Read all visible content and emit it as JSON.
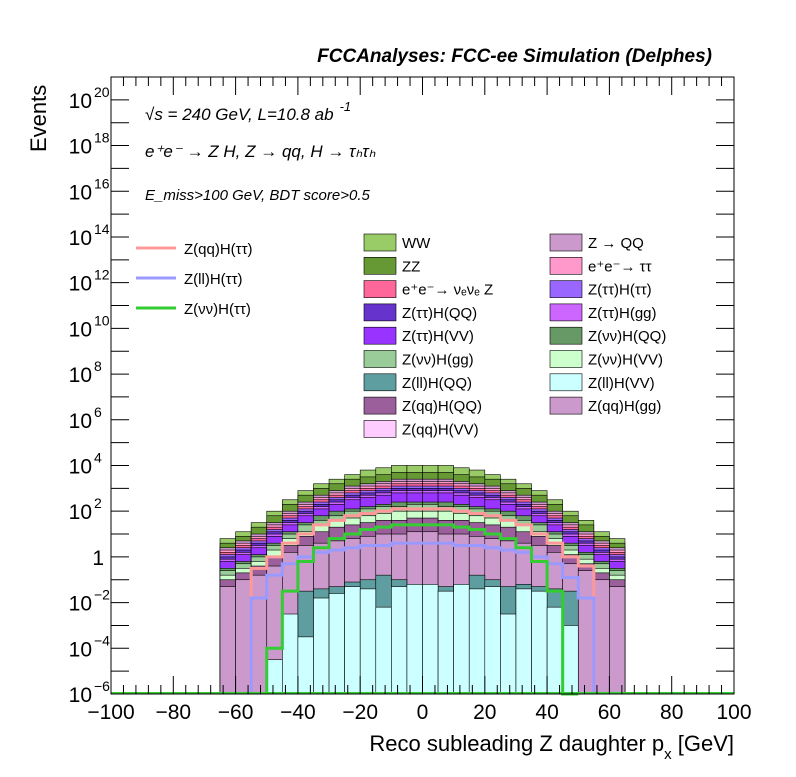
{
  "chart_data": {
    "type": "histogram",
    "title": "FCCAnalyses: FCC-ee Simulation (Delphes)",
    "xlabel": "Reco subleading Z daughter p",
    "xlabel_sub": "x",
    "xlabel_unit": " [GeV]",
    "ylabel": "Events",
    "xlim": [
      -100,
      100
    ],
    "ylim": [
      1e-06,
      1e+21
    ],
    "log_y": true,
    "x_ticks": [
      -100,
      -80,
      -60,
      -40,
      -20,
      0,
      20,
      40,
      60,
      80,
      100
    ],
    "x_tick_labels": [
      "−100",
      "−80",
      "−60",
      "−40",
      "−20",
      "0",
      "20",
      "40",
      "60",
      "80",
      "100"
    ],
    "y_ticks": [
      {
        "exp": -6,
        "base": "10",
        "sup": "−6"
      },
      {
        "exp": -4,
        "base": "10",
        "sup": "−4"
      },
      {
        "exp": -2,
        "base": "10",
        "sup": "−2"
      },
      {
        "exp": 0,
        "base": "1",
        "sup": ""
      },
      {
        "exp": 2,
        "base": "10",
        "sup": "2"
      },
      {
        "exp": 4,
        "base": "10",
        "sup": "4"
      },
      {
        "exp": 6,
        "base": "10",
        "sup": "6"
      },
      {
        "exp": 8,
        "base": "10",
        "sup": "8"
      },
      {
        "exp": 10,
        "base": "10",
        "sup": "10"
      },
      {
        "exp": 12,
        "base": "10",
        "sup": "12"
      },
      {
        "exp": 14,
        "base": "10",
        "sup": "14"
      },
      {
        "exp": 16,
        "base": "10",
        "sup": "16"
      },
      {
        "exp": 18,
        "base": "10",
        "sup": "18"
      },
      {
        "exp": 20,
        "base": "10",
        "sup": "20"
      }
    ],
    "annotations": {
      "energy": "√s = 240 GeV, L=10.8 ab",
      "energy_sup": "-1",
      "process": "e⁺e⁻ → Z H, Z → qq, H → τₕτₕ",
      "selection": "E_miss>100 GeV, BDT score>0.5"
    },
    "x_bins": [
      -65,
      -60,
      -55,
      -50,
      -45,
      -40,
      -35,
      -30,
      -25,
      -20,
      -15,
      -10,
      -5,
      0,
      5,
      10,
      15,
      20,
      25,
      30,
      35,
      40,
      45,
      50,
      55,
      60,
      65
    ],
    "stacked_backgrounds": [
      {
        "name": "Z(qq)H(VV)",
        "color": "#ffccff",
        "log_values": [
          null,
          null,
          null,
          null,
          null,
          null,
          null,
          null,
          null,
          null,
          null,
          null,
          null,
          null,
          null,
          null,
          null,
          null,
          null,
          null,
          null,
          null,
          null,
          null,
          null,
          null
        ]
      },
      {
        "name": "Z(ll)H(VV)",
        "color": "#ccffff",
        "log_values": [
          null,
          null,
          null,
          -4.5,
          -2.5,
          -3.5,
          -1.8,
          -1.6,
          -1.3,
          -1.4,
          -2.2,
          -1.3,
          -1.2,
          -1.2,
          -1.5,
          -1.2,
          -1.4,
          -1.3,
          -2.5,
          -1.4,
          -1.5,
          -2.2,
          -3.0,
          null,
          null,
          null
        ]
      },
      {
        "name": "Z(ll)H(QQ)",
        "color": "#5f9ea0",
        "log_values": [
          null,
          null,
          null,
          null,
          null,
          -1.5,
          -1.4,
          -1.3,
          -1.1,
          -1.0,
          -0.8,
          -1.0,
          -1.2,
          -1.5,
          -1.3,
          -1.2,
          -0.8,
          -1.0,
          -1.3,
          -1.2,
          -1.3,
          -1.4,
          -1.5,
          null,
          null,
          null
        ]
      },
      {
        "name": "Z(qq)H(gg)",
        "color": "#cc99cc",
        "log_values": [
          -1.3,
          -1.0,
          -0.8,
          -0.4,
          0.2,
          0.5,
          0.6,
          0.7,
          0.8,
          0.9,
          1.0,
          1.0,
          1.1,
          1.1,
          1.0,
          1.0,
          0.9,
          0.8,
          0.7,
          0.6,
          0.5,
          0.2,
          -0.3,
          -0.6,
          -1.0,
          -1.3
        ]
      },
      {
        "name": "Z(qq)H(QQ)",
        "color": "#9b5f9b",
        "log_values": [
          -1.0,
          -0.7,
          -0.4,
          0.0,
          0.5,
          0.9,
          1.1,
          1.3,
          1.4,
          1.5,
          1.6,
          1.6,
          1.7,
          1.7,
          1.6,
          1.6,
          1.5,
          1.4,
          1.3,
          1.1,
          0.9,
          0.5,
          0.1,
          -0.3,
          -0.7,
          -1.0
        ]
      },
      {
        "name": "Z(νν)H(VV)",
        "color": "#ccffcc",
        "log_values": [
          -0.8,
          -0.5,
          -0.2,
          0.3,
          0.8,
          1.1,
          1.4,
          1.6,
          1.7,
          1.8,
          1.9,
          2.0,
          2.0,
          2.0,
          2.0,
          1.9,
          1.8,
          1.7,
          1.6,
          1.4,
          1.1,
          0.8,
          0.3,
          -0.1,
          -0.5,
          -0.8
        ]
      },
      {
        "name": "Z(νν)H(gg)",
        "color": "#99cc99",
        "log_values": [
          -0.6,
          -0.3,
          0.0,
          0.5,
          1.0,
          1.4,
          1.6,
          1.8,
          2.0,
          2.1,
          2.2,
          2.2,
          2.3,
          2.3,
          2.2,
          2.2,
          2.1,
          2.0,
          1.8,
          1.6,
          1.4,
          1.0,
          0.5,
          0.1,
          -0.3,
          -0.6
        ]
      },
      {
        "name": "Z(νν)H(QQ)",
        "color": "#669966",
        "log_values": [
          -0.5,
          -0.2,
          0.1,
          0.6,
          1.1,
          1.5,
          1.8,
          2.0,
          2.1,
          2.2,
          2.3,
          2.4,
          2.4,
          2.4,
          2.4,
          2.3,
          2.2,
          2.1,
          2.0,
          1.8,
          1.5,
          1.1,
          0.6,
          0.2,
          -0.2,
          -0.5
        ]
      },
      {
        "name": "Z(ττ)H(VV)",
        "color": "#9933ff",
        "log_values": [
          -0.2,
          0.1,
          0.4,
          0.9,
          1.4,
          1.8,
          2.1,
          2.3,
          2.5,
          2.6,
          2.7,
          2.8,
          2.8,
          2.8,
          2.8,
          2.7,
          2.6,
          2.5,
          2.3,
          2.1,
          1.8,
          1.4,
          0.9,
          0.5,
          0.1,
          -0.2
        ]
      },
      {
        "name": "Z(ττ)H(gg)",
        "color": "#cc66ff",
        "log_values": [
          -0.1,
          0.2,
          0.5,
          1.0,
          1.5,
          1.9,
          2.2,
          2.4,
          2.6,
          2.7,
          2.8,
          2.9,
          2.9,
          2.9,
          2.9,
          2.8,
          2.7,
          2.6,
          2.4,
          2.2,
          1.9,
          1.5,
          1.0,
          0.6,
          0.2,
          -0.1
        ]
      },
      {
        "name": "Z(ττ)H(QQ)",
        "color": "#6633cc",
        "log_values": [
          0.0,
          0.3,
          0.6,
          1.1,
          1.6,
          2.0,
          2.3,
          2.5,
          2.7,
          2.8,
          2.9,
          3.0,
          3.0,
          3.0,
          3.0,
          2.9,
          2.8,
          2.7,
          2.5,
          2.3,
          2.0,
          1.6,
          1.1,
          0.7,
          0.3,
          0.0
        ]
      },
      {
        "name": "Z(ττ)H(ττ)",
        "color": "#9966ff",
        "log_values": [
          0.1,
          0.4,
          0.7,
          1.2,
          1.7,
          2.1,
          2.4,
          2.6,
          2.8,
          2.9,
          3.0,
          3.1,
          3.1,
          3.1,
          3.1,
          3.0,
          2.9,
          2.8,
          2.6,
          2.4,
          2.1,
          1.7,
          1.2,
          0.8,
          0.4,
          0.1
        ]
      },
      {
        "name": "e⁺e⁻→ νₑνₑ Z",
        "color": "#ff6699",
        "log_values": [
          0.2,
          0.5,
          0.8,
          1.3,
          1.8,
          2.2,
          2.5,
          2.7,
          2.9,
          3.0,
          3.1,
          3.2,
          3.2,
          3.2,
          3.2,
          3.1,
          3.0,
          2.9,
          2.7,
          2.5,
          2.2,
          1.8,
          1.3,
          0.9,
          0.5,
          0.2
        ]
      },
      {
        "name": "e⁺e⁻→ ττ",
        "color": "#ff99cc",
        "log_values": [
          0.3,
          0.6,
          0.9,
          1.4,
          1.9,
          2.3,
          2.6,
          2.8,
          3.0,
          3.1,
          3.2,
          3.3,
          3.3,
          3.3,
          3.3,
          3.2,
          3.1,
          3.0,
          2.8,
          2.6,
          2.3,
          1.9,
          1.4,
          1.0,
          0.6,
          0.3
        ]
      },
      {
        "name": "Z → QQ",
        "color": "#cc99cc",
        "log_values": [
          0.4,
          0.7,
          1.0,
          1.5,
          2.0,
          2.4,
          2.7,
          2.9,
          3.1,
          3.2,
          3.3,
          3.4,
          3.4,
          3.4,
          3.4,
          3.3,
          3.2,
          3.1,
          2.9,
          2.7,
          2.4,
          2.0,
          1.5,
          1.1,
          0.7,
          0.4
        ]
      },
      {
        "name": "ZZ",
        "color": "#669933",
        "log_values": [
          0.6,
          0.9,
          1.3,
          1.8,
          2.3,
          2.7,
          3.0,
          3.2,
          3.4,
          3.5,
          3.6,
          3.7,
          3.7,
          3.7,
          3.7,
          3.6,
          3.5,
          3.4,
          3.2,
          3.0,
          2.7,
          2.3,
          1.8,
          1.4,
          0.9,
          0.6
        ]
      },
      {
        "name": "WW",
        "color": "#99cc66",
        "log_values": [
          0.8,
          1.1,
          1.5,
          2.0,
          2.5,
          2.9,
          3.2,
          3.4,
          3.6,
          3.8,
          3.9,
          4.0,
          4.0,
          4.0,
          4.0,
          3.9,
          3.8,
          3.6,
          3.4,
          3.2,
          2.9,
          2.5,
          2.0,
          1.6,
          1.1,
          0.8
        ]
      }
    ],
    "signal_lines": [
      {
        "name": "Z(qq)H(ττ)",
        "color": "#ff9999",
        "log_values": [
          null,
          null,
          -0.5,
          0.0,
          0.6,
          1.0,
          1.4,
          1.6,
          1.8,
          1.9,
          2.0,
          2.1,
          2.1,
          2.1,
          2.1,
          2.0,
          1.9,
          1.8,
          1.6,
          1.4,
          1.0,
          0.6,
          0.0,
          -0.4,
          null,
          null
        ]
      },
      {
        "name": "Z(ll)H(ττ)",
        "color": "#9999ff",
        "log_values": [
          null,
          null,
          -1.8,
          -0.8,
          -0.3,
          0.0,
          0.2,
          0.3,
          0.4,
          0.5,
          0.5,
          0.6,
          0.6,
          0.6,
          0.6,
          0.5,
          0.5,
          0.4,
          0.3,
          0.2,
          0.0,
          -0.3,
          -0.9,
          -1.8,
          null,
          null
        ]
      },
      {
        "name": "Z(νν)H(ττ)",
        "color": "#33cc33",
        "log_values": [
          null,
          null,
          null,
          -4.0,
          -1.5,
          -0.2,
          0.4,
          0.8,
          1.0,
          1.2,
          1.3,
          1.4,
          1.4,
          1.4,
          1.4,
          1.3,
          1.2,
          1.0,
          0.8,
          0.4,
          -0.2,
          -1.5,
          -6.0,
          null,
          null,
          null
        ]
      }
    ],
    "legend_left": [
      "Z(qq)H(ττ)",
      "Z(ll)H(ττ)",
      "Z(νν)H(ττ)"
    ],
    "legend_col1": [
      "WW",
      "ZZ",
      "e⁺e⁻→ νₑνₑ Z",
      "Z(ττ)H(QQ)",
      "Z(ττ)H(VV)",
      "Z(νν)H(gg)",
      "Z(ll)H(QQ)",
      "Z(qq)H(QQ)",
      "Z(qq)H(VV)"
    ],
    "legend_col1_colors": [
      "#99cc66",
      "#669933",
      "#ff6699",
      "#6633cc",
      "#9933ff",
      "#99cc99",
      "#5f9ea0",
      "#9b5f9b",
      "#ffccff"
    ],
    "legend_col2": [
      "Z → QQ",
      "e⁺e⁻→ ττ",
      "Z(ττ)H(ττ)",
      "Z(ττ)H(gg)",
      "Z(νν)H(QQ)",
      "Z(νν)H(VV)",
      "Z(ll)H(VV)",
      "Z(qq)H(gg)"
    ],
    "legend_col2_colors": [
      "#cc99cc",
      "#ff99cc",
      "#9966ff",
      "#cc66ff",
      "#669966",
      "#ccffcc",
      "#ccffff",
      "#cc99cc"
    ]
  }
}
